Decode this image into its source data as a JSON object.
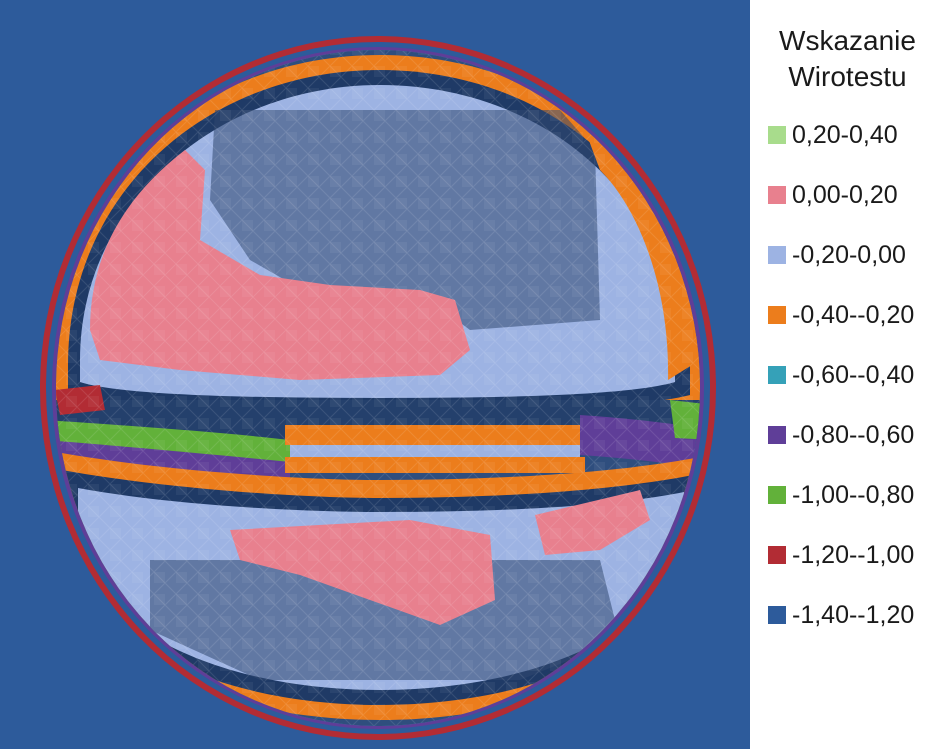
{
  "chart_data": {
    "type": "heatmap",
    "legend_title_line1": "Wskazanie",
    "legend_title_line2": "Wirotestu",
    "legend_position": "right",
    "legend": [
      {
        "label": "0,20-0,40",
        "color": "#a8dc8c"
      },
      {
        "label": "0,00-0,20",
        "color": "#e8808e"
      },
      {
        "label": "-0,20-0,00",
        "color": "#9db3e3"
      },
      {
        "label": "-0,40--0,20",
        "color": "#ec7d1c"
      },
      {
        "label": "-0,60--0,40",
        "color": "#35a1b8"
      },
      {
        "label": "-0,80--0,60",
        "color": "#5f3e98"
      },
      {
        "label": "-1,00--0,80",
        "color": "#62b13a"
      },
      {
        "label": "-1,20--1,00",
        "color": "#b22c34"
      },
      {
        "label": "-1,40--1,20",
        "color": "#2d5b9b"
      }
    ]
  }
}
